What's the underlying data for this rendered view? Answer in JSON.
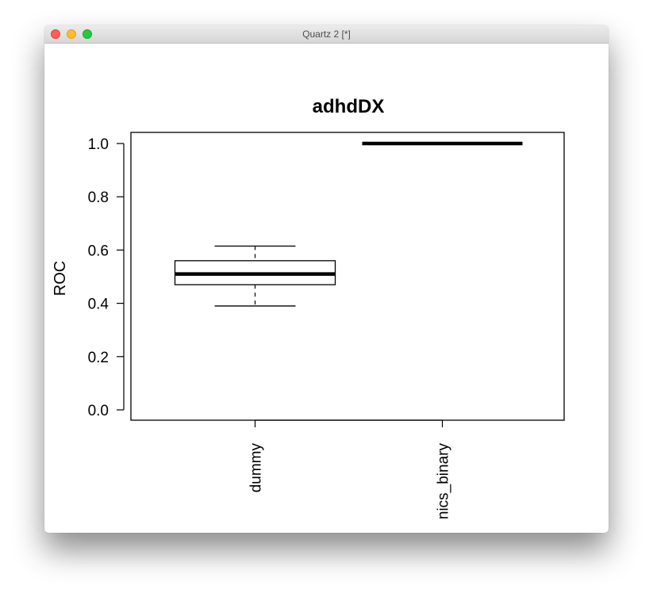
{
  "window": {
    "title": "Quartz 2 [*]"
  },
  "chart_data": {
    "type": "box",
    "title": "adhdDX",
    "xlabel": "",
    "ylabel": "ROC",
    "ylim": [
      -0.04,
      1.04
    ],
    "yticks": [
      0.0,
      0.2,
      0.4,
      0.6,
      0.8,
      1.0
    ],
    "ytick_labels": [
      "0.0",
      "0.2",
      "0.4",
      "0.6",
      "0.8",
      "1.0"
    ],
    "categories": [
      "dummy",
      "nics_binary"
    ],
    "x_tick_labels_visible": [
      "dummy",
      "nics_binary"
    ],
    "boxes": [
      {
        "name": "dummy",
        "whisker_low": 0.39,
        "q1": 0.47,
        "median": 0.51,
        "q3": 0.56,
        "whisker_high": 0.615
      },
      {
        "name": "nics_binary",
        "whisker_low": 1.0,
        "q1": 1.0,
        "median": 1.0,
        "q3": 1.0,
        "whisker_high": 1.0
      }
    ],
    "grid": false,
    "legend": "none",
    "colors": {
      "box_stroke": "#000000",
      "background": "#ffffff"
    }
  }
}
